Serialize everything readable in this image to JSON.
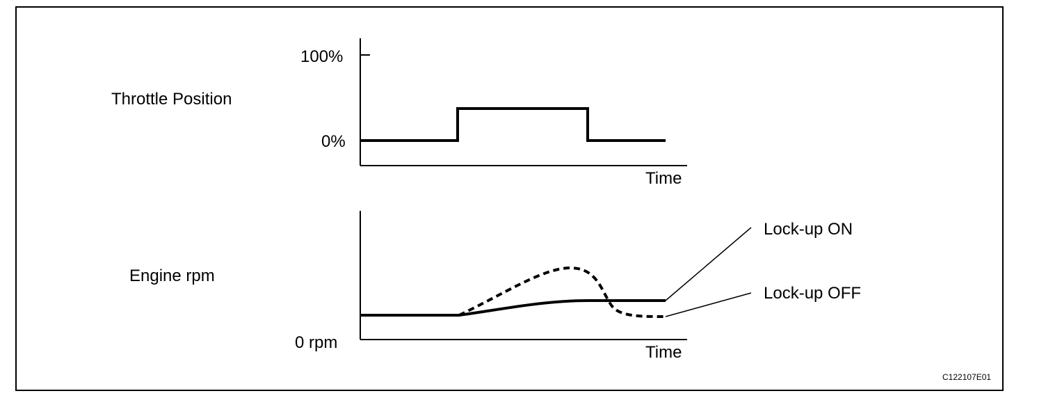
{
  "throttle_panel": {
    "title": "Throttle Position",
    "y_tick_top": "100%",
    "y_tick_bottom": "0%",
    "x_axis_label": "Time"
  },
  "rpm_panel": {
    "title": "Engine rpm",
    "y_tick_bottom": "0 rpm",
    "x_axis_label": "Time",
    "legend_lockup_on": "Lock-up ON",
    "legend_lockup_off": "Lock-up OFF"
  },
  "figure_code": "C122107E01",
  "colors": {
    "line": "#000000",
    "background": "#ffffff"
  }
}
